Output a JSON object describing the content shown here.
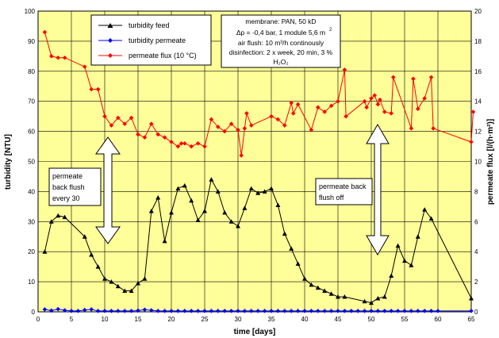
{
  "chart_data": {
    "type": "line",
    "xlabel": "time [days]",
    "ylabel_left": "turbidity [NTU]",
    "ylabel_right": "permeate flux [l/(h·m²)]",
    "xlim": [
      0,
      65
    ],
    "ylim_left": [
      0,
      100
    ],
    "ylim_right": [
      0,
      20
    ],
    "x_ticks": [
      0,
      5,
      10,
      15,
      20,
      25,
      30,
      35,
      40,
      45,
      50,
      55,
      60,
      65
    ],
    "y_left_ticks": [
      0,
      10,
      20,
      30,
      40,
      50,
      60,
      70,
      80,
      90,
      100
    ],
    "y_right_ticks": [
      0,
      2,
      4,
      6,
      8,
      10,
      12,
      14,
      16,
      18,
      20
    ],
    "grid": true,
    "legend_position": "top-left",
    "colors": {
      "plot_background": "#ffff99",
      "grid": "#000000",
      "turbidity_feed": "#000000",
      "turbidity_permeate": "#0000ff",
      "permeate_flux": "#ff0000",
      "arrow_fill": "#ffffff"
    },
    "series": [
      {
        "name": "turbidity feed",
        "axis": "left",
        "marker": "triangle",
        "color": "#000000",
        "x": [
          1,
          2,
          3,
          4,
          7,
          8,
          9,
          10,
          11,
          12,
          13,
          14,
          15,
          16,
          17,
          18,
          19,
          20,
          21,
          22,
          23,
          24,
          25,
          26,
          27,
          28,
          29,
          30,
          31,
          32,
          33,
          34,
          35,
          36,
          37,
          38,
          39,
          40,
          41,
          42,
          43,
          44,
          45,
          46,
          49,
          50,
          51,
          52,
          53,
          54,
          55,
          56,
          57,
          58,
          59,
          65
        ],
        "y": [
          20,
          30,
          32,
          31.5,
          25,
          19,
          15,
          11,
          10,
          8.5,
          7,
          7,
          9.5,
          11,
          33.5,
          38,
          23.5,
          33,
          41,
          42,
          37,
          30.5,
          33.5,
          44,
          40,
          33,
          30,
          28.5,
          34.5,
          41,
          39.5,
          40,
          41,
          35.5,
          26,
          21,
          16,
          11,
          9,
          8,
          7,
          6,
          5,
          5,
          3.5,
          3,
          4.5,
          5,
          12,
          22,
          17,
          15.5,
          25,
          34,
          31,
          4.5
        ]
      },
      {
        "name": "turbidity permeate",
        "axis": "left",
        "marker": "diamond",
        "color": "#0000ff",
        "x": [
          1,
          2,
          3,
          4,
          5,
          6,
          7,
          8,
          9,
          10,
          11,
          12,
          13,
          14,
          15,
          16,
          17,
          18,
          19,
          20,
          21,
          22,
          23,
          24,
          25,
          26,
          27,
          28,
          29,
          30,
          31,
          32,
          33,
          34,
          35,
          36,
          37,
          38,
          39,
          40,
          41,
          42,
          43,
          44,
          45,
          46,
          47,
          48,
          49,
          50,
          51,
          52,
          53,
          54,
          55,
          56,
          57,
          58,
          59,
          60,
          65
        ],
        "y": [
          0.8,
          0.4,
          0.9,
          0.5,
          0.3,
          0.3,
          0.6,
          0.8,
          0.3,
          0.3,
          0.3,
          0.3,
          0.3,
          0.3,
          0.4,
          0.7,
          0.5,
          0.3,
          0.3,
          0.3,
          0.3,
          0.3,
          0.3,
          0.3,
          0.3,
          0.3,
          0.3,
          0.3,
          0.3,
          0.3,
          0.3,
          0.3,
          0.3,
          0.3,
          0.3,
          0.3,
          0.3,
          0.3,
          0.3,
          0.3,
          0.3,
          0.3,
          0.3,
          0.3,
          0.3,
          0.3,
          0.3,
          0.3,
          0.3,
          0.3,
          0.3,
          0.3,
          0.3,
          0.3,
          0.3,
          0.3,
          0.3,
          0.3,
          0.3,
          0.3,
          0.3
        ]
      },
      {
        "name": "permeate flux (10 °C)",
        "axis": "right",
        "marker": "diamond",
        "color": "#ff0000",
        "x": [
          1,
          2,
          3,
          4,
          7,
          8,
          9,
          10,
          11,
          12,
          13,
          14,
          15,
          16,
          17,
          18,
          19,
          20,
          21,
          21.5,
          22,
          23,
          24,
          25,
          26,
          27,
          28,
          29,
          30,
          30.5,
          31,
          31.3,
          32,
          35,
          36,
          37,
          38,
          38.3,
          39,
          41,
          42,
          43,
          44,
          45,
          46,
          46.2,
          49,
          49.3,
          50,
          50.5,
          51,
          51.3,
          52,
          53,
          53.3,
          56,
          56.3,
          57,
          58,
          59,
          59.3,
          65,
          65.3
        ],
        "y": [
          18.6,
          17,
          16.9,
          16.9,
          16.3,
          14.8,
          14.8,
          13,
          12.4,
          12.9,
          12.5,
          12.9,
          11.8,
          11.6,
          12.5,
          11.8,
          11.6,
          11.3,
          11,
          11.2,
          11.2,
          11,
          11.2,
          11,
          12.8,
          12.3,
          12,
          12.5,
          12.1,
          10.4,
          12.2,
          13.2,
          12.4,
          13,
          12.8,
          12.4,
          13.9,
          13.2,
          13.8,
          12.1,
          13.6,
          13.3,
          13.7,
          14,
          16.1,
          13,
          14,
          13.6,
          14.2,
          14.4,
          13.8,
          14.1,
          13.3,
          13.2,
          15.6,
          12.2,
          15.5,
          13.5,
          14.2,
          15.6,
          12.2,
          11.3,
          13.3
        ]
      }
    ],
    "legend": [
      "turbidity feed",
      "turbidity permeate",
      "permeate flux (10 °C)"
    ],
    "annotations": {
      "membrane_lines": [
        "membrane: PAN, 50 kD",
        "Δp = -0,4 bar, 1 module 5,6 m",
        "air flush: 10 m³/h continously",
        "disinfection: 2 x week, 20 min, 3 %",
        "H₂O₂"
      ],
      "membrane_superscript": "2",
      "backflush_lines": [
        "permeate",
        "back flush",
        "every 30"
      ],
      "backflush_off_lines": [
        "permeate back",
        "flush off"
      ]
    }
  }
}
